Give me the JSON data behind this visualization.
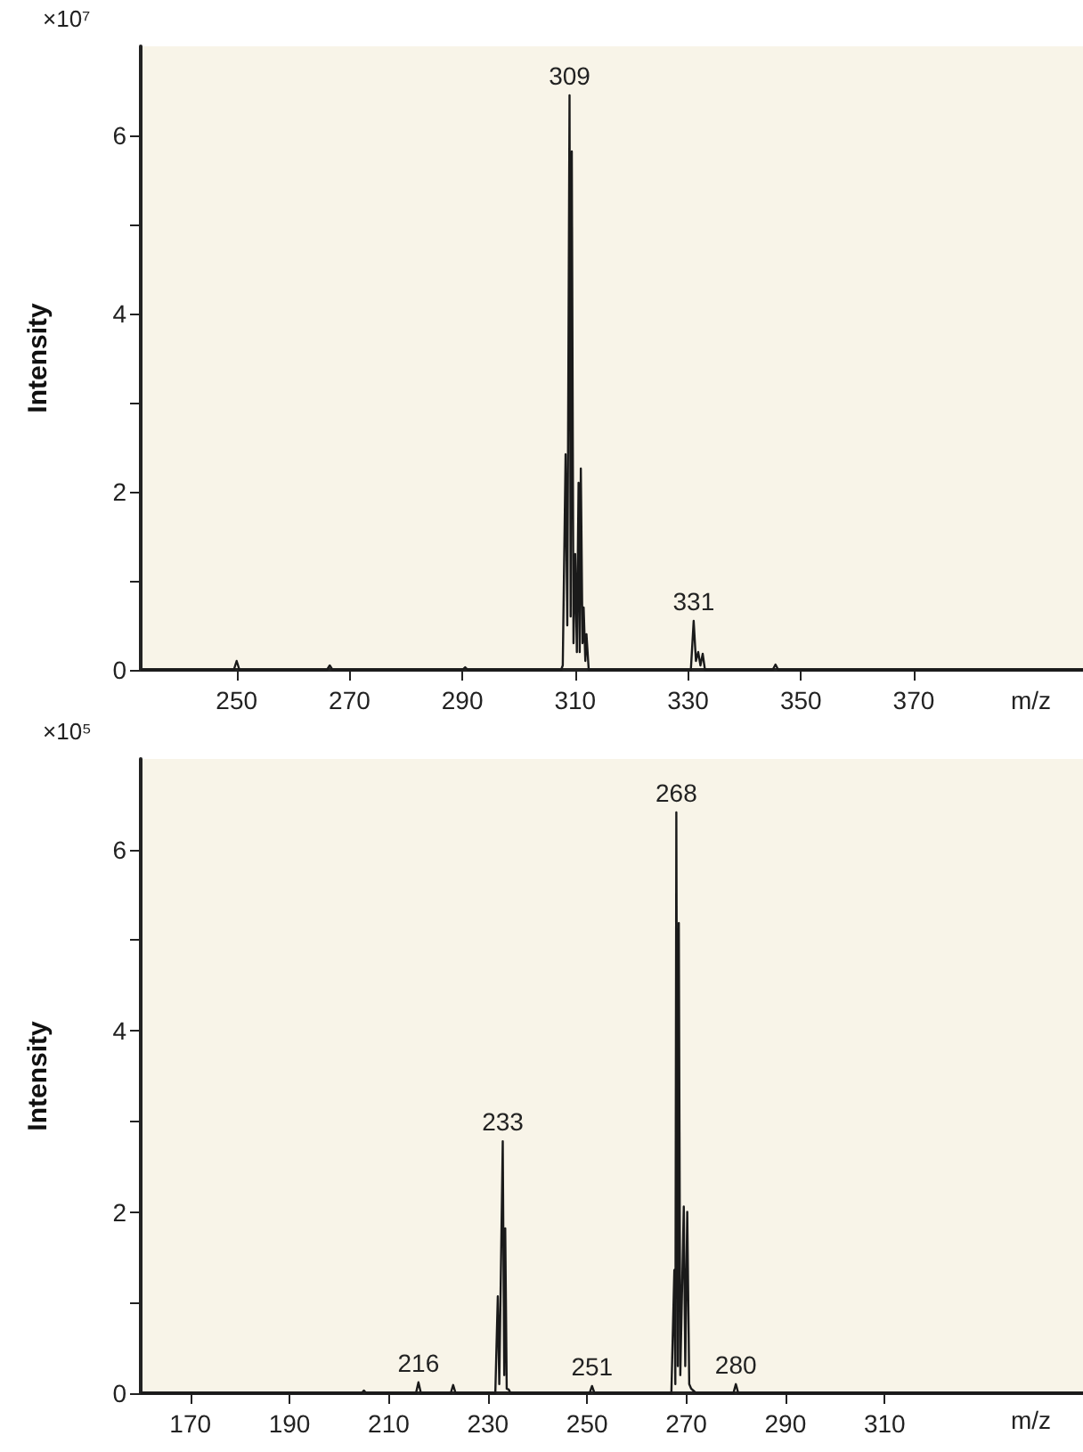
{
  "chart_data": [
    {
      "type": "line",
      "ylabel": "Intensity",
      "xlabel": "m/z",
      "color": "#1a1a1a",
      "grid": false,
      "annotations": [
        "×10⁷",
        {
          "text": "309",
          "x": 309,
          "y": 6.45
        },
        {
          "text": "331",
          "x": 331,
          "y": 0.55
        }
      ],
      "x": [
        233,
        249.5,
        250,
        250.5,
        266,
        266.5,
        267,
        290,
        290.5,
        291,
        307.5,
        307.8,
        308.3,
        308.6,
        309,
        309.2,
        309.4,
        309.7,
        310,
        310.3,
        310.6,
        310.8,
        311,
        311.3,
        311.5,
        311.8,
        312,
        312.4,
        330.5,
        331,
        331.4,
        331.8,
        332.2,
        332.6,
        333,
        345,
        345.5,
        346,
        400
      ],
      "values": [
        0,
        0,
        0.1,
        0,
        0,
        0.05,
        0,
        0,
        0.03,
        0,
        0,
        0.05,
        2.42,
        0.5,
        6.45,
        0.6,
        5.82,
        0.3,
        1.3,
        0.2,
        2.1,
        0.2,
        2.26,
        0.3,
        0.7,
        0.1,
        0.4,
        0,
        0,
        0.55,
        0.1,
        0.2,
        0.05,
        0.18,
        0,
        0,
        0.06,
        0,
        0
      ],
      "xlim": [
        233,
        400
      ],
      "xticks": [
        250,
        270,
        290,
        310,
        330,
        350,
        370
      ],
      "ylim": [
        0,
        7
      ],
      "yticks": [
        0,
        {
          "value": 1,
          "label": null
        },
        2,
        {
          "value": 3,
          "label": null
        },
        4,
        {
          "value": 5,
          "label": null
        },
        6
      ]
    },
    {
      "type": "line",
      "ylabel": "Intensity",
      "xlabel": "m/z",
      "color": "#1a1a1a",
      "grid": false,
      "annotations": [
        "×10⁵",
        {
          "text": "216",
          "x": 216,
          "y": 0.12
        },
        {
          "text": "233",
          "x": 233,
          "y": 2.78
        },
        {
          "text": "251",
          "x": 251,
          "y": 0.08
        },
        {
          "text": "268",
          "x": 268,
          "y": 6.41
        },
        {
          "text": "280",
          "x": 280,
          "y": 0.1
        }
      ],
      "x": [
        160,
        204.5,
        205,
        205.5,
        215.5,
        216,
        216.5,
        222.5,
        223,
        223.5,
        231.5,
        232,
        232.3,
        233,
        233.3,
        233.5,
        233.8,
        234.2,
        234.6,
        250.5,
        251,
        251.5,
        267,
        267.6,
        267.8,
        268,
        268.3,
        268.5,
        268.8,
        269.5,
        269.8,
        270.2,
        270.6,
        271,
        272,
        279.5,
        280,
        280.5,
        350
      ],
      "values": [
        0,
        0,
        0.03,
        0,
        0,
        0.12,
        0,
        0,
        0.09,
        0,
        0,
        1.07,
        0.1,
        2.78,
        0.2,
        1.82,
        0.05,
        0.04,
        0,
        0,
        0.08,
        0,
        0,
        1.36,
        0.1,
        6.41,
        0.3,
        5.19,
        0.2,
        2.06,
        0.3,
        2.0,
        0.1,
        0.05,
        0,
        0,
        0.1,
        0,
        0
      ],
      "xlim": [
        160,
        350
      ],
      "xticks": [
        170,
        190,
        210,
        230,
        250,
        270,
        290,
        310
      ],
      "ylim": [
        0,
        7
      ],
      "yticks": [
        0,
        {
          "value": 1,
          "label": null
        },
        2,
        {
          "value": 3,
          "label": null
        },
        4,
        {
          "value": 5,
          "label": null
        },
        6
      ]
    }
  ]
}
